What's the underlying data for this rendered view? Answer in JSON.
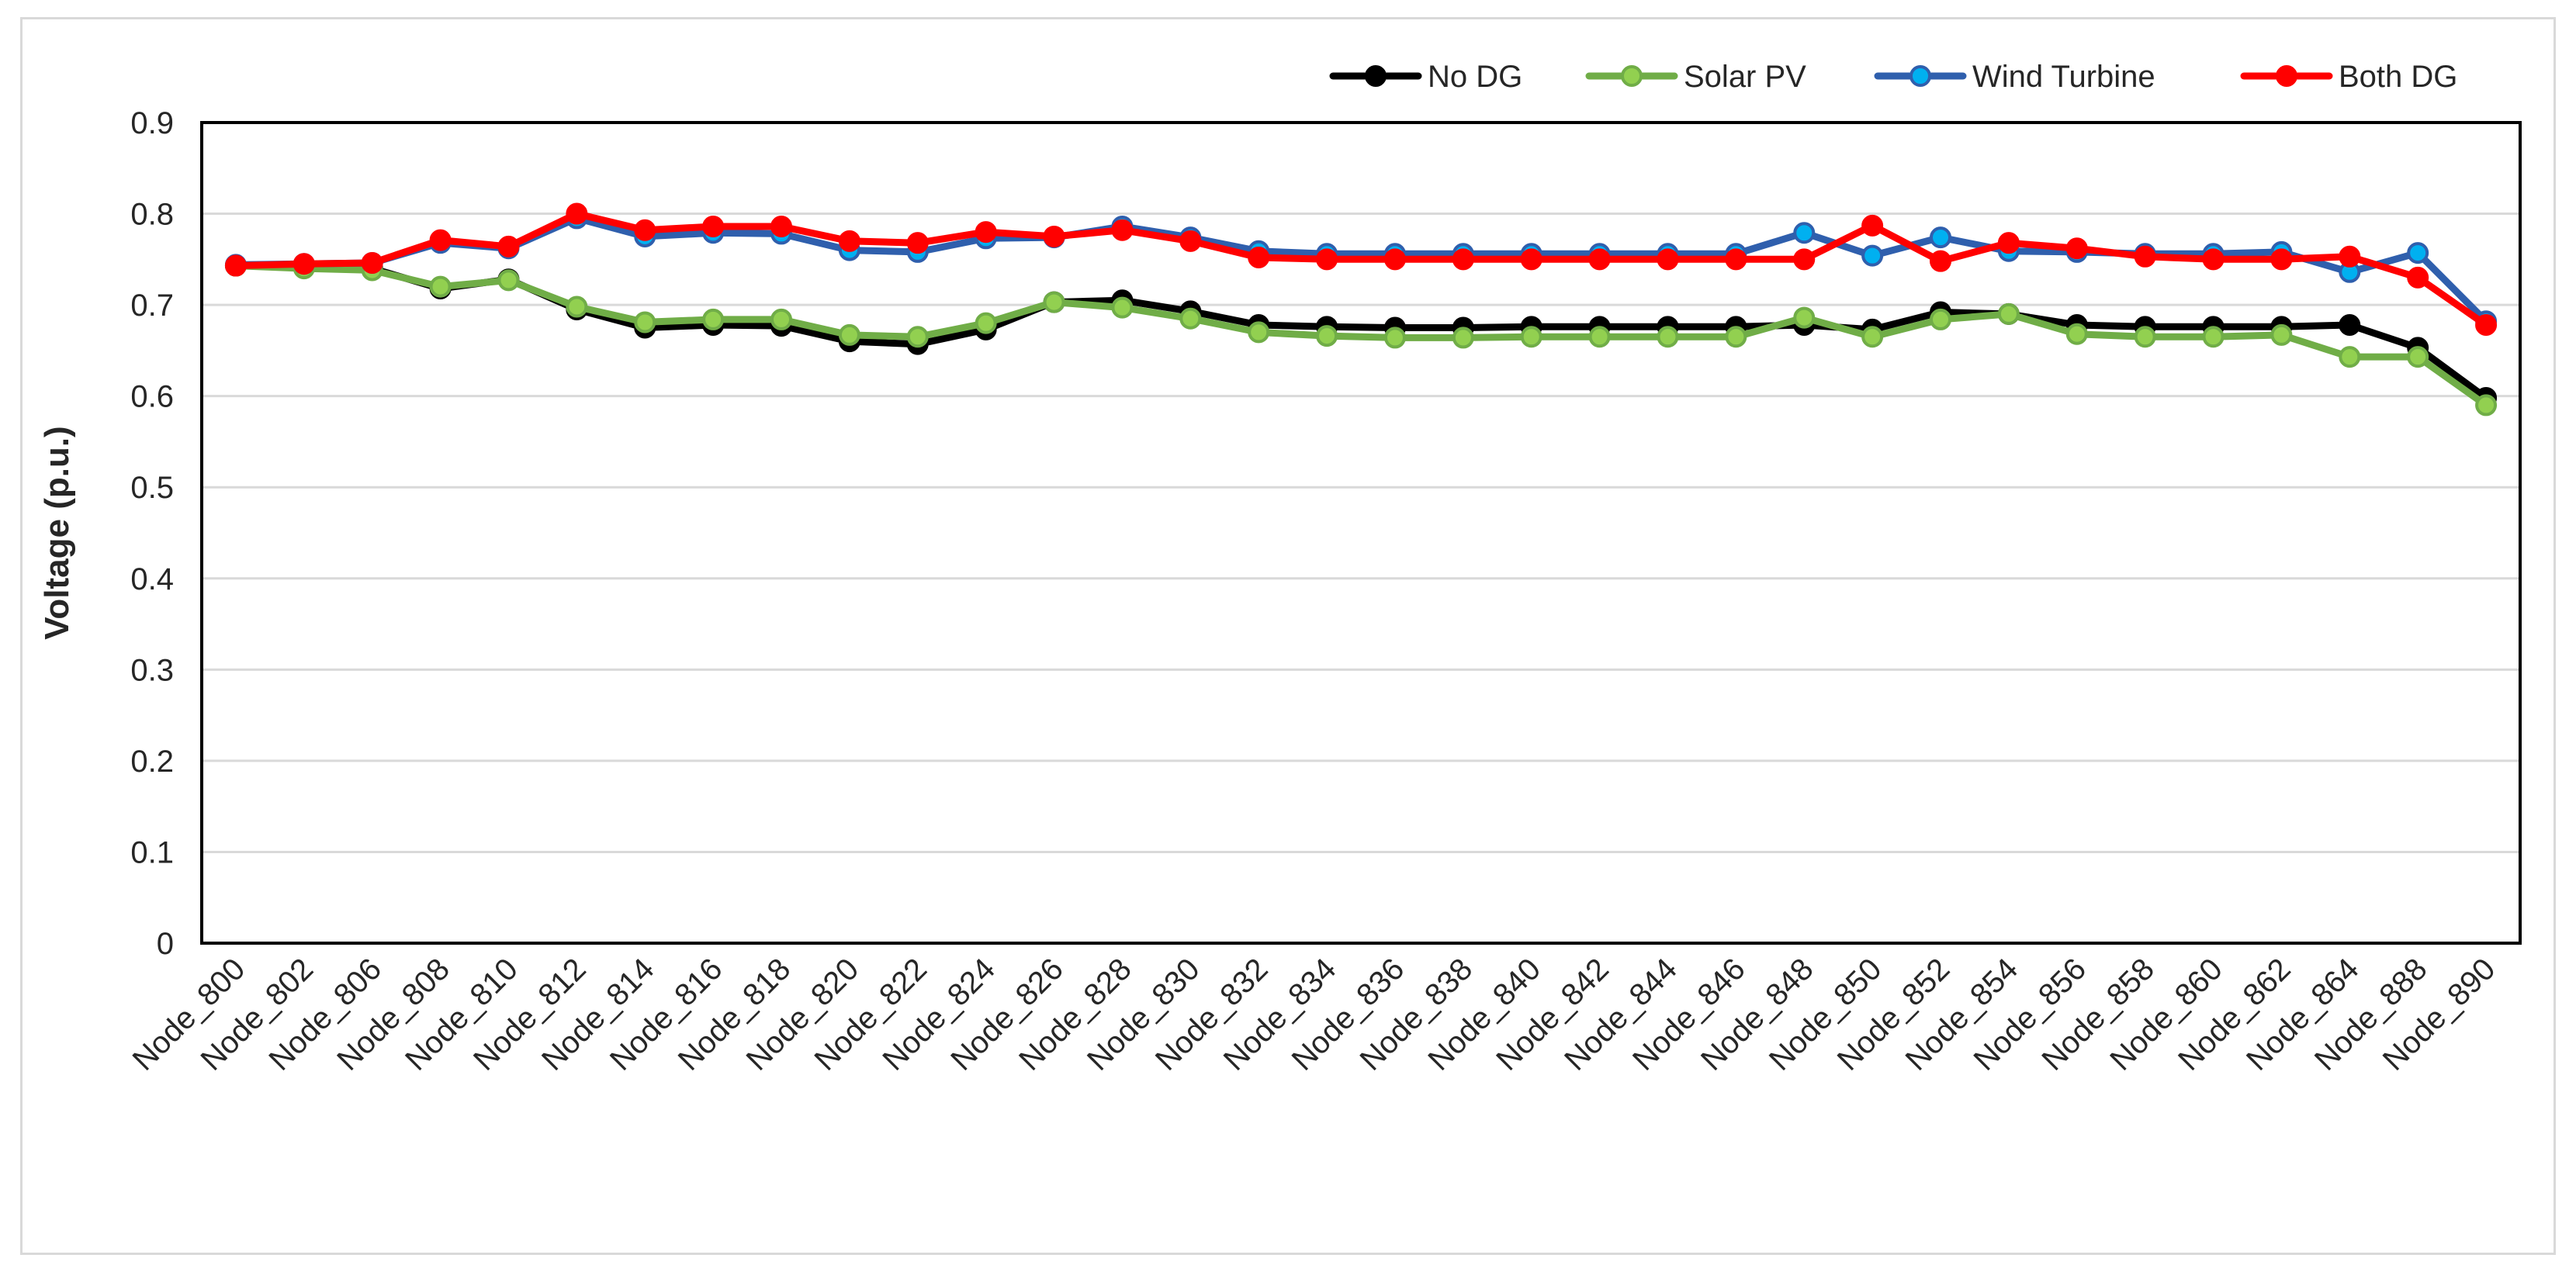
{
  "chart_data": {
    "type": "line",
    "ylabel": "Voltage (p.u.)",
    "xlabel": "",
    "ylim": [
      0,
      0.9
    ],
    "y_ticks": [
      "0",
      "0.1",
      "0.2",
      "0.3",
      "0.4",
      "0.5",
      "0.6",
      "0.7",
      "0.8",
      "0.9"
    ],
    "grid": "horizontal",
    "legend_position": "top-right",
    "categories": [
      "Node_800",
      "Node_802",
      "Node_806",
      "Node_808",
      "Node_810",
      "Node_812",
      "Node_814",
      "Node_816",
      "Node_818",
      "Node_820",
      "Node_822",
      "Node_824",
      "Node_826",
      "Node_828",
      "Node_830",
      "Node_832",
      "Node_834",
      "Node_836",
      "Node_838",
      "Node_840",
      "Node_842",
      "Node_844",
      "Node_846",
      "Node_848",
      "Node_850",
      "Node_852",
      "Node_854",
      "Node_856",
      "Node_858",
      "Node_860",
      "Node_862",
      "Node_864",
      "Node_888",
      "Node_890"
    ],
    "series": [
      {
        "name": "No DG",
        "line_color": "#000000",
        "marker_color": "#000000",
        "values": [
          0.743,
          0.743,
          0.74,
          0.718,
          0.728,
          0.695,
          0.675,
          0.678,
          0.677,
          0.66,
          0.657,
          0.673,
          0.703,
          0.705,
          0.693,
          0.678,
          0.676,
          0.675,
          0.675,
          0.676,
          0.676,
          0.676,
          0.676,
          0.678,
          0.673,
          0.692,
          0.69,
          0.678,
          0.676,
          0.676,
          0.676,
          0.678,
          0.653,
          0.598
        ]
      },
      {
        "name": "Solar PV",
        "line_color": "#70ad47",
        "marker_color": "#92d050",
        "values": [
          0.743,
          0.74,
          0.738,
          0.72,
          0.727,
          0.698,
          0.681,
          0.684,
          0.684,
          0.667,
          0.665,
          0.68,
          0.703,
          0.697,
          0.685,
          0.67,
          0.666,
          0.664,
          0.664,
          0.665,
          0.665,
          0.665,
          0.665,
          0.686,
          0.665,
          0.684,
          0.69,
          0.668,
          0.665,
          0.665,
          0.667,
          0.643,
          0.643,
          0.59
        ]
      },
      {
        "name": "Wind Turbine",
        "line_color": "#2f5fad",
        "marker_color": "#00b0f0",
        "values": [
          0.744,
          0.745,
          0.746,
          0.768,
          0.762,
          0.795,
          0.775,
          0.779,
          0.778,
          0.76,
          0.758,
          0.773,
          0.774,
          0.786,
          0.774,
          0.759,
          0.756,
          0.756,
          0.756,
          0.756,
          0.756,
          0.756,
          0.756,
          0.779,
          0.754,
          0.774,
          0.759,
          0.758,
          0.756,
          0.756,
          0.758,
          0.736,
          0.757,
          0.682
        ]
      },
      {
        "name": "Both DG",
        "line_color": "#ff0000",
        "marker_color": "#ff0000",
        "values": [
          0.743,
          0.745,
          0.746,
          0.771,
          0.764,
          0.8,
          0.782,
          0.786,
          0.786,
          0.77,
          0.768,
          0.78,
          0.775,
          0.782,
          0.77,
          0.752,
          0.75,
          0.75,
          0.75,
          0.75,
          0.75,
          0.75,
          0.75,
          0.75,
          0.787,
          0.748,
          0.768,
          0.762,
          0.753,
          0.75,
          0.75,
          0.753,
          0.73,
          0.678
        ]
      }
    ]
  }
}
